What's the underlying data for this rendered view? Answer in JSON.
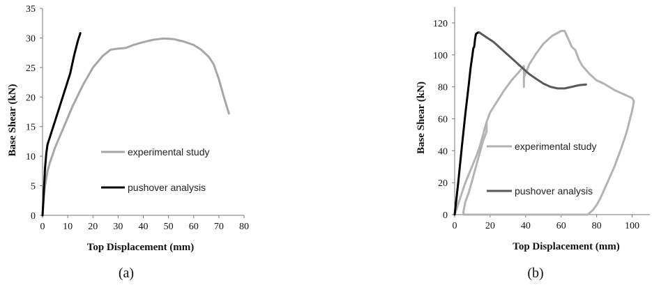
{
  "chart_data": [
    {
      "type": "line",
      "panel_label": "(a)",
      "xlabel": "Top Displacement (mm)",
      "ylabel": "Base Shear (kN)",
      "xlim": [
        0,
        80
      ],
      "ylim": [
        0,
        35
      ],
      "xticks": [
        0,
        10,
        20,
        30,
        40,
        50,
        60,
        70,
        80
      ],
      "yticks": [
        0,
        5,
        10,
        15,
        20,
        25,
        30,
        35
      ],
      "grid": false,
      "legend_position": "center-right inside plot",
      "series": [
        {
          "name": "experimental study",
          "color": "#a6a6a6",
          "x": [
            0,
            0.5,
            1,
            2,
            3,
            5,
            8,
            12,
            16,
            20,
            24,
            27,
            30,
            33,
            36,
            40,
            44,
            48,
            52,
            56,
            60,
            63,
            66,
            68,
            70,
            72,
            74
          ],
          "y": [
            0,
            3,
            5,
            7.5,
            9,
            11.5,
            14.5,
            18.5,
            22,
            25,
            27,
            28,
            28.2,
            28.3,
            28.8,
            29.3,
            29.7,
            29.9,
            29.8,
            29.4,
            28.8,
            28,
            26.8,
            25.5,
            23,
            20,
            17.2
          ]
        },
        {
          "name": "pushover analysis",
          "color": "#000000",
          "x": [
            0,
            0.5,
            1,
            1.5,
            2,
            5,
            8,
            11,
            12.5,
            14,
            15
          ],
          "y": [
            0,
            4,
            8,
            10.5,
            12,
            16,
            20,
            24,
            27,
            29.5,
            30.8
          ]
        }
      ]
    },
    {
      "type": "line",
      "panel_label": "(b)",
      "xlabel": "Top Displacement (mm)",
      "ylabel": "Base Shear (kN)",
      "xlim": [
        0,
        110
      ],
      "ylim": [
        0,
        130
      ],
      "xticks": [
        0,
        20,
        40,
        60,
        80,
        100
      ],
      "yticks": [
        0,
        20,
        40,
        60,
        80,
        100,
        120
      ],
      "grid": false,
      "legend_position": "center inside plot",
      "series": [
        {
          "name": "experimental study",
          "color": "#b3b3b3",
          "x": [
            0,
            3,
            6,
            9,
            12,
            14,
            16,
            18,
            20,
            24,
            28,
            32,
            36,
            39,
            39,
            39,
            42,
            46,
            50,
            55,
            60,
            62,
            64,
            66,
            68,
            70,
            72,
            76,
            80,
            84,
            90,
            96,
            100,
            101,
            100,
            97,
            94,
            90,
            86,
            84,
            82,
            80,
            78,
            76,
            75,
            75,
            74,
            73,
            72,
            71,
            70,
            68,
            66,
            64,
            62,
            60,
            58,
            56,
            54,
            52,
            50,
            48,
            46,
            44,
            42,
            40,
            38,
            36,
            34,
            32,
            30,
            28,
            26,
            24,
            22,
            20,
            18,
            16,
            14,
            12,
            10,
            8,
            6,
            5,
            5,
            6,
            8,
            10,
            12,
            14,
            16,
            18,
            18
          ],
          "y": [
            0,
            10,
            20,
            28,
            36,
            42,
            50,
            58,
            64,
            71,
            78,
            84,
            89,
            93,
            80,
            86,
            94,
            101,
            107,
            112,
            115,
            115,
            110,
            105,
            103,
            97,
            93,
            88,
            84,
            82,
            78,
            75,
            73,
            71,
            65,
            52,
            42,
            30,
            20,
            15,
            10,
            6,
            3,
            1,
            0,
            0,
            0,
            0,
            0,
            0,
            0,
            0,
            0,
            0,
            0,
            0,
            0,
            0,
            0,
            0,
            0,
            0,
            0,
            0,
            0,
            0,
            0,
            0,
            0,
            0,
            0,
            0,
            0,
            0,
            0,
            0,
            0,
            0,
            0,
            0,
            0,
            0,
            0,
            0,
            2,
            8,
            14,
            22,
            30,
            38,
            46,
            52,
            57
          ]
        },
        {
          "name": "pushover analysis",
          "color": "#000000",
          "x": [
            0,
            2,
            4,
            6,
            8,
            9,
            10,
            10.5,
            11,
            11.5,
            12,
            13,
            14
          ],
          "y": [
            0,
            20,
            42,
            63,
            82,
            92,
            100,
            104,
            105,
            110,
            113,
            114,
            114
          ]
        },
        {
          "name": "pushover analysis",
          "color": "#595959",
          "x": [
            14,
            18,
            22,
            26,
            30,
            34,
            38,
            42,
            46,
            50,
            54,
            58,
            62,
            66,
            70,
            74
          ],
          "y": [
            114,
            111,
            108,
            104,
            100,
            96,
            92,
            88,
            85,
            82,
            80,
            79,
            79,
            80,
            81,
            81.5
          ]
        }
      ],
      "legend": [
        {
          "name": "experimental study",
          "color": "#b3b3b3"
        },
        {
          "name": "pushover analysis",
          "color": "#595959"
        }
      ]
    }
  ],
  "captions": {
    "left": "(a)",
    "right": "(b)"
  },
  "legend_a": [
    {
      "name": "experimental study",
      "color": "#a6a6a6"
    },
    {
      "name": "pushover analysis",
      "color": "#000000"
    }
  ]
}
